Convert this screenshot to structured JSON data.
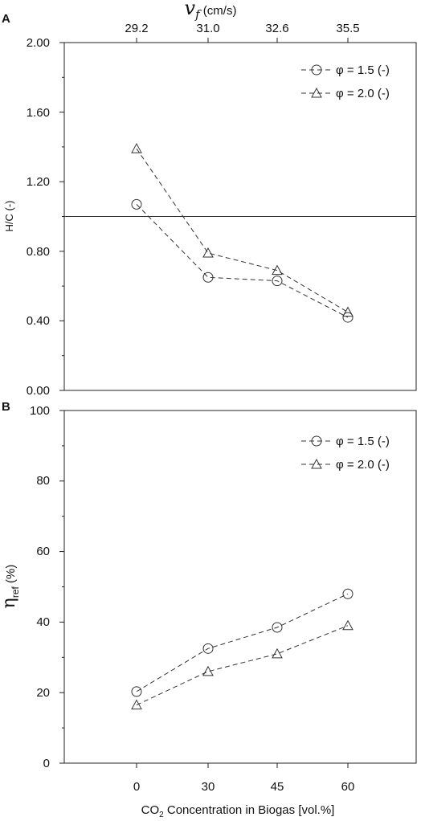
{
  "chart_data": [
    {
      "type": "line",
      "panel_label": "A",
      "ylabel": "H/C (-)",
      "ylim": [
        0,
        2.0
      ],
      "yticks": [
        "0.00",
        "0.40",
        "0.80",
        "1.20",
        "1.60",
        "2.00"
      ],
      "top_axis": {
        "symbol": "v",
        "subscript": "f",
        "unit": " (cm/s)",
        "tick_labels": [
          "29.2",
          "31.0",
          "32.6",
          "35.5"
        ]
      },
      "categories": [
        "0",
        "30",
        "45",
        "60"
      ],
      "reference_line_y": 1.0,
      "legend_position": "top-right",
      "series": [
        {
          "name": "φ = 1.5 (-)",
          "marker": "circle",
          "values": [
            1.07,
            0.65,
            0.63,
            0.42
          ]
        },
        {
          "name": "φ = 2.0 (-)",
          "marker": "triangle",
          "values": [
            1.39,
            0.79,
            0.69,
            0.45
          ]
        }
      ]
    },
    {
      "type": "line",
      "panel_label": "B",
      "ylabel_symbol": "η",
      "ylabel_subscript": "ref",
      "ylabel_unit": " (%)",
      "ylim": [
        0,
        100
      ],
      "yticks": [
        "0",
        "20",
        "40",
        "60",
        "80",
        "100"
      ],
      "categories": [
        "0",
        "30",
        "45",
        "60"
      ],
      "xlabel_prefix": "CO",
      "xlabel_subscript": "2",
      "xlabel_suffix": " Concentration in Biogas [vol.%]",
      "legend_position": "top-right",
      "series": [
        {
          "name": "φ = 1.5 (-)",
          "marker": "circle",
          "values": [
            20.3,
            32.5,
            38.5,
            48.0
          ]
        },
        {
          "name": "φ = 2.0 (-)",
          "marker": "triangle",
          "values": [
            16.5,
            26.0,
            31.0,
            39.0
          ]
        }
      ]
    }
  ]
}
